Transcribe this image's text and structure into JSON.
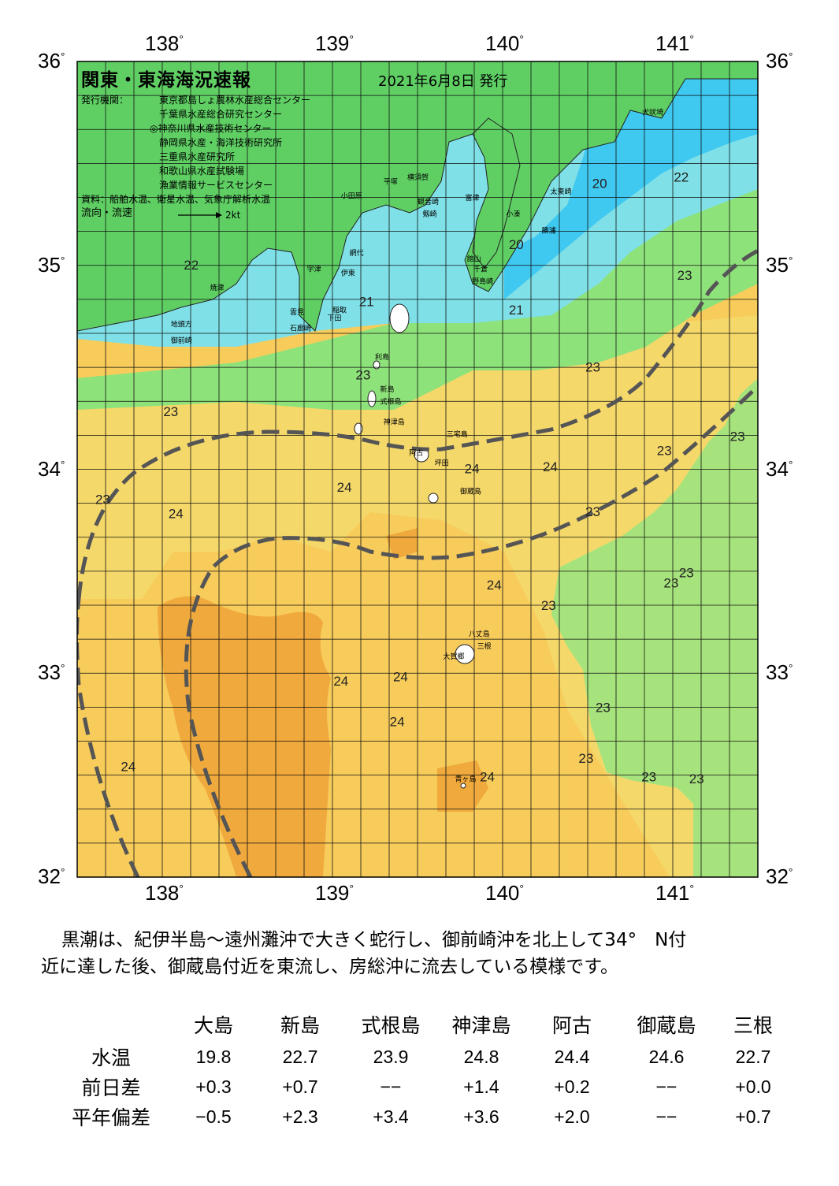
{
  "header": {
    "title": "関東・東海海況速報",
    "date": "2021年6月8日 発行",
    "issuer_label": "発行機関：",
    "issuers": [
      "東京都島しょ農林水産総合センター",
      "千葉県水産総合研究センター",
      "◎神奈川県水産技術センター",
      "静岡県水産・海洋技術研究所",
      "三重県水産研究所",
      "和歌山県水産試験場",
      "漁業情報サービスセンター"
    ],
    "source": "資料：船舶水温、衛星水温、気象庁解析水温",
    "flow_label": "流向・流速",
    "flow_scale": "2kt"
  },
  "axes": {
    "lon_ticks": [
      "138",
      "139",
      "140",
      "141"
    ],
    "lat_ticks": [
      "36",
      "35",
      "34",
      "33",
      "32"
    ],
    "lon_range": [
      137.5,
      141.5
    ],
    "lat_range": [
      32,
      36
    ]
  },
  "temperature_labels": [
    {
      "text": "20",
      "lon": 140.57,
      "lat": 35.38
    },
    {
      "text": "20",
      "lon": 140.08,
      "lat": 35.08
    },
    {
      "text": "22",
      "lon": 141.05,
      "lat": 35.41
    },
    {
      "text": "22",
      "lon": 138.17,
      "lat": 34.98
    },
    {
      "text": "21",
      "lon": 139.2,
      "lat": 34.8
    },
    {
      "text": "21",
      "lon": 140.08,
      "lat": 34.76
    },
    {
      "text": "23",
      "lon": 141.07,
      "lat": 34.93
    },
    {
      "text": "23",
      "lon": 140.53,
      "lat": 34.48
    },
    {
      "text": "23",
      "lon": 139.18,
      "lat": 34.44
    },
    {
      "text": "23",
      "lon": 138.05,
      "lat": 34.26
    },
    {
      "text": "23",
      "lon": 141.38,
      "lat": 34.14
    },
    {
      "text": "23",
      "lon": 140.95,
      "lat": 34.07
    },
    {
      "text": "23",
      "lon": 137.65,
      "lat": 33.83
    },
    {
      "text": "24",
      "lon": 138.08,
      "lat": 33.76
    },
    {
      "text": "24",
      "lon": 139.07,
      "lat": 33.89
    },
    {
      "text": "24",
      "lon": 139.82,
      "lat": 33.98
    },
    {
      "text": "24",
      "lon": 140.28,
      "lat": 33.99
    },
    {
      "text": "23",
      "lon": 140.53,
      "lat": 33.77
    },
    {
      "text": "23",
      "lon": 141.08,
      "lat": 33.47
    },
    {
      "text": "23",
      "lon": 140.99,
      "lat": 33.42
    },
    {
      "text": "24",
      "lon": 139.95,
      "lat": 33.41
    },
    {
      "text": "23",
      "lon": 140.27,
      "lat": 33.31
    },
    {
      "text": "24",
      "lon": 139.05,
      "lat": 32.94
    },
    {
      "text": "24",
      "lon": 139.4,
      "lat": 32.96
    },
    {
      "text": "24",
      "lon": 139.38,
      "lat": 32.74
    },
    {
      "text": "23",
      "lon": 140.59,
      "lat": 32.81
    },
    {
      "text": "23",
      "lon": 140.49,
      "lat": 32.56
    },
    {
      "text": "23",
      "lon": 140.86,
      "lat": 32.47
    },
    {
      "text": "23",
      "lon": 141.14,
      "lat": 32.46
    },
    {
      "text": "24",
      "lon": 137.8,
      "lat": 32.52
    },
    {
      "text": "24",
      "lon": 139.91,
      "lat": 32.47
    }
  ],
  "place_labels": [
    {
      "text": "犬吠埼",
      "lon": 140.82,
      "lat": 35.74
    },
    {
      "text": "太東崎",
      "lon": 140.28,
      "lat": 35.35
    },
    {
      "text": "勝浦",
      "lon": 140.23,
      "lat": 35.16
    },
    {
      "text": "小湊",
      "lon": 140.02,
      "lat": 35.24
    },
    {
      "text": "富津",
      "lon": 139.78,
      "lat": 35.32
    },
    {
      "text": "館山",
      "lon": 139.79,
      "lat": 35.02
    },
    {
      "text": "千倉",
      "lon": 139.83,
      "lat": 34.97
    },
    {
      "text": "野島崎",
      "lon": 139.82,
      "lat": 34.91
    },
    {
      "text": "横須賀",
      "lon": 139.44,
      "lat": 35.42
    },
    {
      "text": "観音崎",
      "lon": 139.5,
      "lat": 35.3
    },
    {
      "text": "剱崎",
      "lon": 139.53,
      "lat": 35.24
    },
    {
      "text": "平塚",
      "lon": 139.3,
      "lat": 35.4
    },
    {
      "text": "小田原",
      "lon": 139.05,
      "lat": 35.33
    },
    {
      "text": "伊東",
      "lon": 139.05,
      "lat": 34.95
    },
    {
      "text": "稲取",
      "lon": 139.0,
      "lat": 34.77
    },
    {
      "text": "下田",
      "lon": 138.97,
      "lat": 34.73
    },
    {
      "text": "雲見",
      "lon": 138.75,
      "lat": 34.76
    },
    {
      "text": "石廊崎",
      "lon": 138.75,
      "lat": 34.68
    },
    {
      "text": "網代",
      "lon": 139.1,
      "lat": 35.05
    },
    {
      "text": "宇津",
      "lon": 138.85,
      "lat": 34.97
    },
    {
      "text": "焼津",
      "lon": 138.28,
      "lat": 34.88
    },
    {
      "text": "地頭方",
      "lon": 138.05,
      "lat": 34.7
    },
    {
      "text": "御前崎",
      "lon": 138.05,
      "lat": 34.62
    },
    {
      "text": "利島",
      "lon": 139.25,
      "lat": 34.54
    },
    {
      "text": "新島",
      "lon": 139.28,
      "lat": 34.38
    },
    {
      "text": "式根島",
      "lon": 139.28,
      "lat": 34.32
    },
    {
      "text": "神津島",
      "lon": 139.3,
      "lat": 34.22
    },
    {
      "text": "阿古",
      "lon": 139.45,
      "lat": 34.07
    },
    {
      "text": "三宅島",
      "lon": 139.67,
      "lat": 34.16
    },
    {
      "text": "坪田",
      "lon": 139.6,
      "lat": 34.02
    },
    {
      "text": "御蔵島",
      "lon": 139.75,
      "lat": 33.88
    },
    {
      "text": "八丈島",
      "lon": 139.8,
      "lat": 33.18
    },
    {
      "text": "三根",
      "lon": 139.85,
      "lat": 33.12
    },
    {
      "text": "大賀郷",
      "lon": 139.65,
      "lat": 33.07
    },
    {
      "text": "青ヶ島",
      "lon": 139.72,
      "lat": 32.47
    }
  ],
  "description": {
    "line1": "黒潮は、紀伊半島～遠州灘沖で大きく蛇行し、御前崎沖を北上して34°　N付",
    "line2": "近に達した後、御蔵島付近を東流し、房総沖に流去している模様です。"
  },
  "table": {
    "stations": [
      "大島",
      "新島",
      "式根島",
      "神津島",
      "阿古",
      "御蔵島",
      "三根"
    ],
    "rows": [
      {
        "label": "水温",
        "values": [
          "19.8",
          "22.7",
          "23.9",
          "24.8",
          "24.4",
          "24.6",
          "22.7"
        ]
      },
      {
        "label": "前日差",
        "values": [
          "+0.3",
          "+0.7",
          "−−",
          "+1.4",
          "+0.2",
          "−−",
          "+0.0"
        ]
      },
      {
        "label": "平年偏差",
        "values": [
          "−0.5",
          "+2.3",
          "+3.4",
          "+3.6",
          "+2.0",
          "−−",
          "+0.7"
        ]
      }
    ]
  },
  "colors": {
    "cold_blue": "#3fc8f0",
    "light_cyan": "#7fe0e8",
    "green": "#8ee27a",
    "light_green": "#a6e37c",
    "yellow": "#f5e06a",
    "light_orange": "#f7cc5b",
    "orange": "#f0a93c",
    "land": "#5fcf64",
    "current_line": "#555555"
  }
}
